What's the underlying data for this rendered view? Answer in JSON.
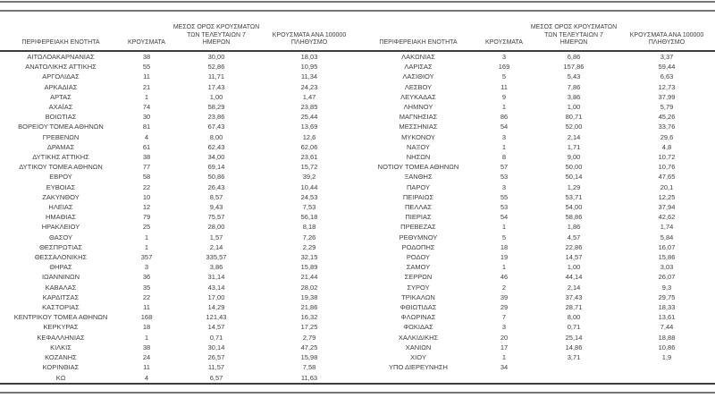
{
  "table": {
    "columns": {
      "region": "ΠΕΡΙΦΕΡΕΙΑΚΗ ΕΝΟΤΗΤΑ",
      "cases": "ΚΡΟΥΣΜΑΤΑ",
      "avg7_lines": [
        "ΜΕΣΟΣ ΟΡΟΣ ΚΡΟΥΣΜΑΤΩΝ",
        "ΤΩΝ ΤΕΛΕΥΤΑΙΩΝ 7",
        "ΗΜΕΡΩΝ"
      ],
      "per100k_lines": [
        "ΚΡΟΥΣΜΑΤΑ ΑΝΑ 100000",
        "ΠΛΗΘΥΣΜΟ"
      ]
    },
    "left_rows": [
      [
        "ΑΙΤΩΛΟΑΚΑΡΝΑΝΙΑΣ",
        "38",
        "30,00",
        "18,03"
      ],
      [
        "ΑΝΑΤΟΛΙΚΗΣ ΑΤΤΙΚΗΣ",
        "55",
        "52,86",
        "10,95"
      ],
      [
        "ΑΡΓΟΛΙΔΑΣ",
        "11",
        "11,71",
        "11,34"
      ],
      [
        "ΑΡΚΑΔΙΑΣ",
        "21",
        "17,43",
        "24,23"
      ],
      [
        "ΑΡΤΑΣ",
        "1",
        "1,00",
        "1,47"
      ],
      [
        "ΑΧΑΪΑΣ",
        "74",
        "58,29",
        "23,85"
      ],
      [
        "ΒΟΙΩΤΙΑΣ",
        "30",
        "23,86",
        "25,44"
      ],
      [
        "ΒΟΡΕΙΟΥ ΤΟΜΕΑ ΑΘΗΝΩΝ",
        "81",
        "67,43",
        "13,69"
      ],
      [
        "ΓΡΕΒΕΝΩΝ",
        "4",
        "8,00",
        "12,6"
      ],
      [
        "ΔΡΑΜΑΣ",
        "61",
        "62,43",
        "62,06"
      ],
      [
        "ΔΥΤΙΚΗΣ ΑΤΤΙΚΗΣ",
        "38",
        "34,00",
        "23,61"
      ],
      [
        "ΔΥΤΙΚΟΥ ΤΟΜΕΑ ΑΘΗΝΩΝ",
        "77",
        "69,14",
        "15,72"
      ],
      [
        "ΕΒΡΟΥ",
        "58",
        "50,86",
        "39,2"
      ],
      [
        "ΕΥΒΟΙΑΣ",
        "22",
        "26,43",
        "10,44"
      ],
      [
        "ΖΑΚΥΝΘΟΥ",
        "10",
        "8,57",
        "24,53"
      ],
      [
        "ΗΛΕΙΑΣ",
        "12",
        "9,43",
        "7,53"
      ],
      [
        "ΗΜΑΘΙΑΣ",
        "79",
        "75,57",
        "56,18"
      ],
      [
        "ΗΡΑΚΛΕΙΟΥ",
        "25",
        "28,00",
        "8,18"
      ],
      [
        "ΘΑΣΟΥ",
        "1",
        "1,57",
        "7,26"
      ],
      [
        "ΘΕΣΠΡΩΤΙΑΣ",
        "1",
        "2,14",
        "2,29"
      ],
      [
        "ΘΕΣΣΑΛΟΝΙΚΗΣ",
        "357",
        "335,57",
        "32,15"
      ],
      [
        "ΘΗΡΑΣ",
        "3",
        "3,86",
        "15,89"
      ],
      [
        "ΙΩΑΝΝΙΝΩΝ",
        "36",
        "31,14",
        "21,44"
      ],
      [
        "ΚΑΒΑΛΑΣ",
        "35",
        "43,14",
        "28,02"
      ],
      [
        "ΚΑΡΔΙΤΣΑΣ",
        "22",
        "17,00",
        "19,38"
      ],
      [
        "ΚΑΣΤΟΡΙΑΣ",
        "11",
        "14,29",
        "21,86"
      ],
      [
        "ΚΕΝΤΡΙΚΟΥ ΤΟΜΕΑ ΑΘΗΝΩΝ",
        "168",
        "121,43",
        "16,32"
      ],
      [
        "ΚΕΡΚΥΡΑΣ",
        "18",
        "14,57",
        "17,25"
      ],
      [
        "ΚΕΦΑΛΛΗΝΙΑΣ",
        "1",
        "0,71",
        "2,79"
      ],
      [
        "ΚΙΛΚΙΣ",
        "38",
        "30,14",
        "47,25"
      ],
      [
        "ΚΟΖΑΝΗΣ",
        "24",
        "26,57",
        "15,98"
      ],
      [
        "ΚΟΡΙΝΘΙΑΣ",
        "11",
        "11,57",
        "7,58"
      ],
      [
        "ΚΩ",
        "4",
        "6,57",
        "11,63"
      ]
    ],
    "right_rows": [
      [
        "ΛΑΚΩΝΙΑΣ",
        "3",
        "6,86",
        "3,37"
      ],
      [
        "ΛΑΡΙΣΑΣ",
        "169",
        "157,86",
        "59,44"
      ],
      [
        "ΛΑΣΙΘΙΟΥ",
        "5",
        "5,43",
        "6,63"
      ],
      [
        "ΛΕΣΒΟΥ",
        "11",
        "7,86",
        "12,73"
      ],
      [
        "ΛΕΥΚΑΔΑΣ",
        "9",
        "3,86",
        "37,99"
      ],
      [
        "ΛΗΜΝΟΥ",
        "1",
        "1,00",
        "5,79"
      ],
      [
        "ΜΑΓΝΗΣΙΑΣ",
        "86",
        "80,71",
        "45,26"
      ],
      [
        "ΜΕΣΣΗΝΙΑΣ",
        "54",
        "52,00",
        "33,76"
      ],
      [
        "ΜΥΚΟΝΟΥ",
        "3",
        "2,14",
        "29,6"
      ],
      [
        "ΝΑΞΟΥ",
        "1",
        "1,71",
        "4,8"
      ],
      [
        "ΝΗΣΩΝ",
        "8",
        "9,00",
        "10,72"
      ],
      [
        "ΝΟΤΙΟΥ ΤΟΜΕΑ ΑΘΗΝΩΝ",
        "57",
        "50,00",
        "10,76"
      ],
      [
        "ΞΑΝΘΗΣ",
        "53",
        "50,14",
        "47,65"
      ],
      [
        "ΠΑΡΟΥ",
        "3",
        "1,29",
        "20,1"
      ],
      [
        "ΠΕΙΡΑΙΩΣ",
        "55",
        "53,71",
        "12,25"
      ],
      [
        "ΠΕΛΛΑΣ",
        "53",
        "54,00",
        "37,94"
      ],
      [
        "ΠΙΕΡΙΑΣ",
        "54",
        "58,86",
        "42,62"
      ],
      [
        "ΠΡΕΒΕΖΑΣ",
        "1",
        "1,86",
        "1,74"
      ],
      [
        "ΡΕΘΥΜΝΟΥ",
        "5",
        "4,57",
        "5,84"
      ],
      [
        "ΡΟΔΟΠΗΣ",
        "18",
        "22,86",
        "16,07"
      ],
      [
        "ΡΟΔΟΥ",
        "19",
        "14,57",
        "15,86"
      ],
      [
        "ΣΑΜΟΥ",
        "1",
        "1,00",
        "3,03"
      ],
      [
        "ΣΕΡΡΩΝ",
        "46",
        "44,14",
        "26,07"
      ],
      [
        "ΣΥΡΟΥ",
        "2",
        "2,14",
        "9,3"
      ],
      [
        "ΤΡΙΚΑΛΩΝ",
        "39",
        "37,43",
        "29,75"
      ],
      [
        "ΦΘΙΩΤΙΔΑΣ",
        "29",
        "28,71",
        "18,33"
      ],
      [
        "ΦΛΩΡΙΝΑΣ",
        "7",
        "8,00",
        "13,61"
      ],
      [
        "ΦΩΚΙΔΑΣ",
        "3",
        "0,71",
        "7,44"
      ],
      [
        "ΧΑΛΚΙΔΙΚΗΣ",
        "20",
        "25,14",
        "18,88"
      ],
      [
        "ΧΑΝΙΩΝ",
        "17",
        "14,86",
        "10,86"
      ],
      [
        "ΧΙΟΥ",
        "1",
        "3,71",
        "1,9"
      ],
      [
        "ΥΠΟ ΔΙΕΡΕΥΝΗΣΗ",
        "34",
        "",
        ""
      ]
    ],
    "colors": {
      "text": "#3d3d3d",
      "outer_rule_gray": "#767676",
      "inner_rule_dark": "#3e3e3e"
    }
  }
}
